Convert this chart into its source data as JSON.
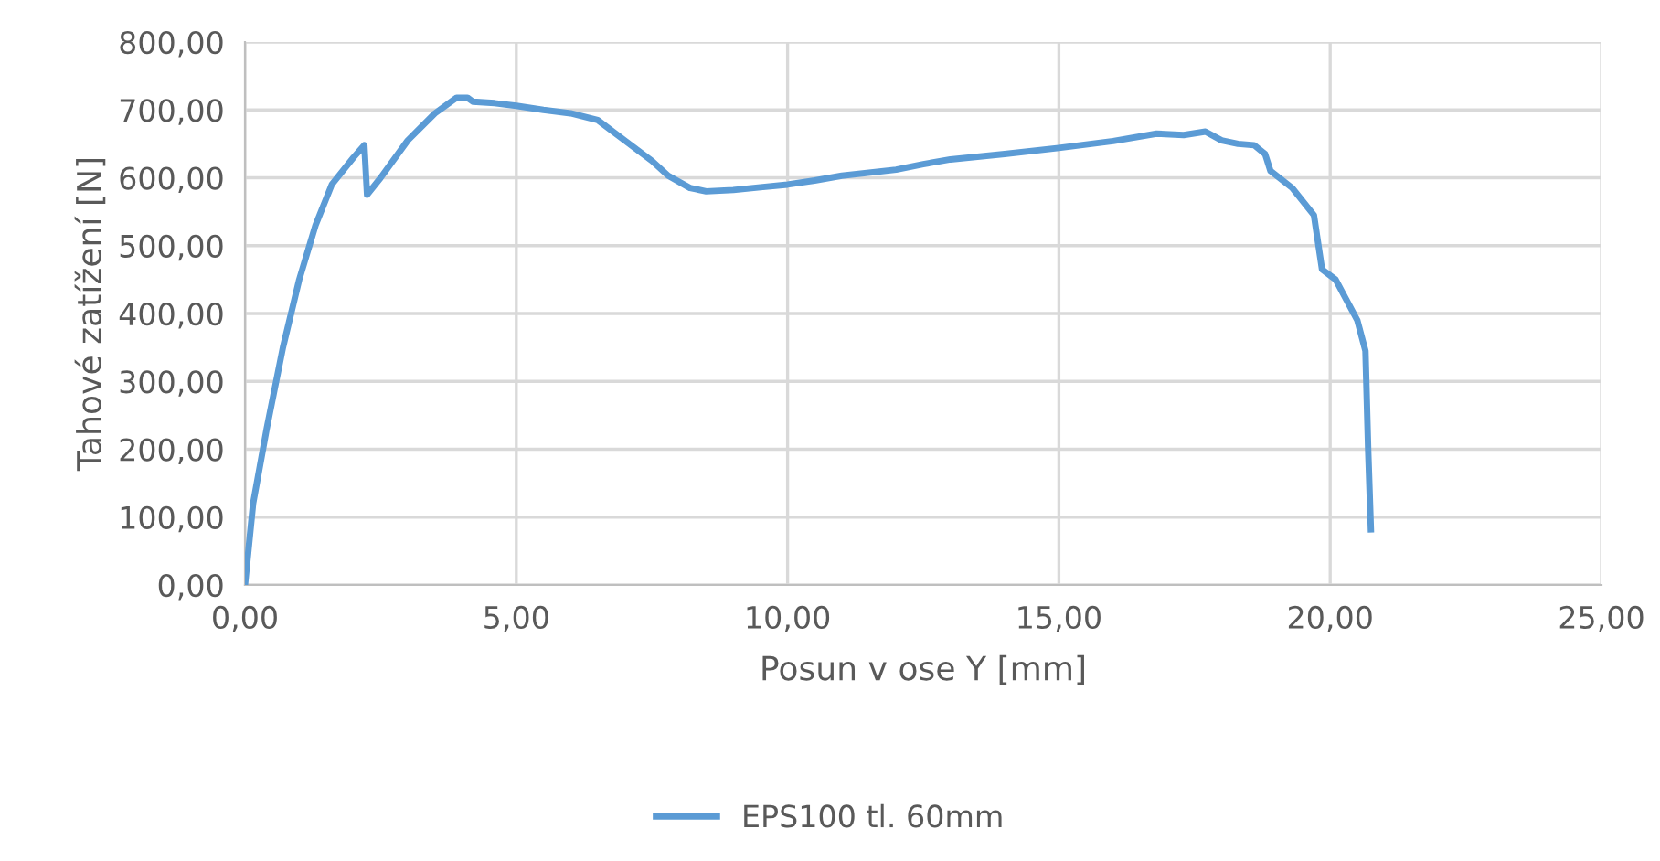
{
  "chart_data": {
    "type": "line",
    "xlabel": "Posun v ose Y [mm]",
    "ylabel": "Tahové zatížení [N]",
    "xlim": [
      0,
      25
    ],
    "ylim": [
      0,
      800
    ],
    "xticks": [
      {
        "value": 0,
        "label": "0,00"
      },
      {
        "value": 5,
        "label": "5,00"
      },
      {
        "value": 10,
        "label": "10,00"
      },
      {
        "value": 15,
        "label": "15,00"
      },
      {
        "value": 20,
        "label": "20,00"
      },
      {
        "value": 25,
        "label": "25,00"
      }
    ],
    "yticks": [
      {
        "value": 0,
        "label": "0,00"
      },
      {
        "value": 100,
        "label": "100,00"
      },
      {
        "value": 200,
        "label": "200,00"
      },
      {
        "value": 300,
        "label": "300,00"
      },
      {
        "value": 400,
        "label": "400,00"
      },
      {
        "value": 500,
        "label": "500,00"
      },
      {
        "value": 600,
        "label": "600,00"
      },
      {
        "value": 700,
        "label": "700,00"
      },
      {
        "value": 800,
        "label": "800,00"
      }
    ],
    "grid": true,
    "legend": "bottom",
    "marker": "none",
    "line_style": "solid",
    "series": [
      {
        "name": "EPS100 tl. 60mm",
        "color": "#5b9bd5",
        "x": [
          0,
          0.15,
          0.4,
          0.7,
          1.0,
          1.3,
          1.6,
          2.0,
          2.2,
          2.25,
          2.5,
          3.0,
          3.5,
          3.9,
          4.1,
          4.2,
          4.6,
          5.0,
          5.5,
          6.0,
          6.5,
          7.0,
          7.5,
          7.8,
          8.2,
          8.5,
          9,
          9.5,
          10,
          10.5,
          11,
          12,
          12.5,
          13,
          14,
          15,
          16,
          16.8,
          17.3,
          17.7,
          18,
          18.3,
          18.6,
          18.8,
          18.9,
          19.3,
          19.7,
          19.85,
          20.1,
          20.3,
          20.5,
          20.65,
          20.7,
          20.75
        ],
        "values": [
          0,
          120,
          230,
          350,
          450,
          530,
          590,
          630,
          648,
          575,
          600,
          655,
          695,
          718,
          718,
          712,
          710,
          706,
          700,
          695,
          685,
          655,
          625,
          603,
          585,
          580,
          582,
          586,
          590,
          596,
          603,
          612,
          620,
          627,
          635,
          644,
          654,
          665,
          663,
          668,
          655,
          650,
          648,
          635,
          610,
          585,
          545,
          465,
          450,
          420,
          390,
          345,
          200,
          82
        ]
      }
    ]
  }
}
